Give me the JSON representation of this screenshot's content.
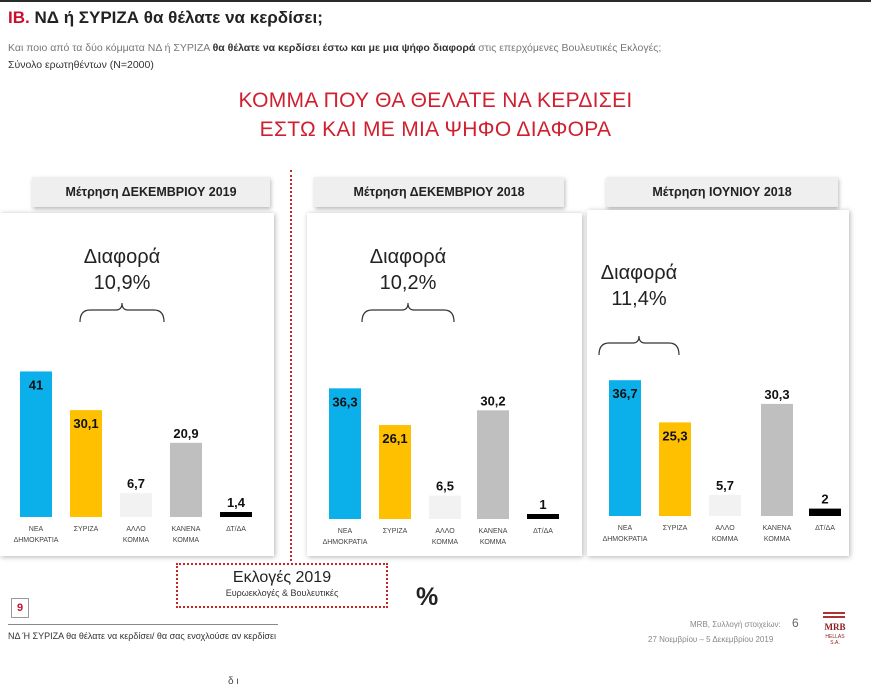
{
  "header": {
    "code": "ΙΒ.",
    "title": "ΝΔ  ή ΣΥΡΙΖΑ θα θέλατε να κερδίσει;",
    "subtitle_pre": "Και ποιο από τα δύο κόμματα ΝΔ ή ΣΥΡΙΖΑ ",
    "subtitle_bold": "θα θέλατε να κερδίσει έστω και με μια ψήφο διαφορά",
    "subtitle_post": " στις επερχόμενες Βουλευτικές Εκλογές;",
    "base": "Σύνολο ερωτηθέντων (N=2000)"
  },
  "headline": {
    "line1": "ΚΟΜΜΑ ΠΟΥ ΘΑ ΘΕΛΑΤΕ ΝΑ ΚΕΡΔΙΣΕΙ",
    "line2": "ΕΣΤΩ ΚΑΙ ΜΕ ΜΙΑ ΨΗΦΟ ΔΙΑΦΟΡΑ"
  },
  "colors": {
    "nd": "#0bb0ea",
    "syriza": "#ffc000",
    "allo": "#f2f2f2",
    "kanena": "#bfbfbf",
    "dtda": "#000000",
    "accent_red": "#d0202f"
  },
  "chart_data": [
    {
      "type": "bar",
      "title": "Μέτρηση ΔΕΚΕΜΒΡΙΟΥ 2019",
      "categories": [
        [
          "ΝΕΑ",
          "ΔΗΜΟΚΡΑΤΙΑ"
        ],
        [
          "ΣΥΡΙΖΑ"
        ],
        [
          "ΑΛΛΟ",
          "ΚΟΜΜΑ"
        ],
        [
          "ΚΑΝΕΝΑ",
          "ΚΟΜΜΑ"
        ],
        [
          "ΔΤ/ΔΑ"
        ]
      ],
      "values": [
        41,
        30.1,
        6.7,
        20.9,
        1.4
      ],
      "labels": [
        "41",
        "30,1",
        "6,7",
        "20,9",
        "1,4"
      ],
      "difference_label": "Διαφορά",
      "difference_value": "10,9%"
    },
    {
      "type": "bar",
      "title": "Μέτρηση ΔΕΚΕΜΒΡΙΟΥ 2018",
      "categories": [
        [
          "ΝΕΑ",
          "ΔΗΜΟΚΡΑΤΙΑ"
        ],
        [
          "ΣΥΡΙΖΑ"
        ],
        [
          "ΑΛΛΟ",
          "ΚΟΜΜΑ"
        ],
        [
          "ΚΑΝΕΝΑ",
          "ΚΟΜΜΑ"
        ],
        [
          "ΔΤ/ΔΑ"
        ]
      ],
      "values": [
        36.3,
        26.1,
        6.5,
        30.2,
        1
      ],
      "labels": [
        "36,3",
        "26,1",
        "6,5",
        "30,2",
        "1"
      ],
      "difference_label": "Διαφορά",
      "difference_value": "10,2%"
    },
    {
      "type": "bar",
      "title": "Μέτρηση ΙΟΥΝΙΟΥ 2018",
      "categories": [
        [
          "ΝΕΑ",
          "ΔΗΜΟΚΡΑΤΙΑ"
        ],
        [
          "ΣΥΡΙΖΑ"
        ],
        [
          "ΑΛΛΟ",
          "ΚΟΜΜΑ"
        ],
        [
          "ΚΑΝΕΝΑ",
          "ΚΟΜΜΑ"
        ],
        [
          "ΔΤ/ΔΑ"
        ]
      ],
      "values": [
        36.7,
        25.3,
        5.7,
        30.3,
        2
      ],
      "labels": [
        "36,7",
        "25,3",
        "5,7",
        "30,3",
        "2"
      ],
      "difference_label": "Διαφορά",
      "difference_value": "11,4%"
    }
  ],
  "election_box": {
    "title": "Εκλογές 2019",
    "subtitle": "Ευρωεκλογές & Βουλευτικές"
  },
  "percent_sign": "%",
  "footer": {
    "page_number": "9",
    "question": "ΝΔ Ή ΣΥΡΙΖΑ θα θέλατε να κερδίσει/ θα σας ενοχλούσε αν κερδίσει",
    "source": "MRB, Συλλογή στοιχείων:",
    "source_number": "6",
    "dates": "27 Νοεμβρίου – 5 Δεκεμβρίου 2019",
    "logo_text": "MRB",
    "logo_sub": "HELLAS S.A.",
    "cutoff_text": "δ    ι"
  }
}
